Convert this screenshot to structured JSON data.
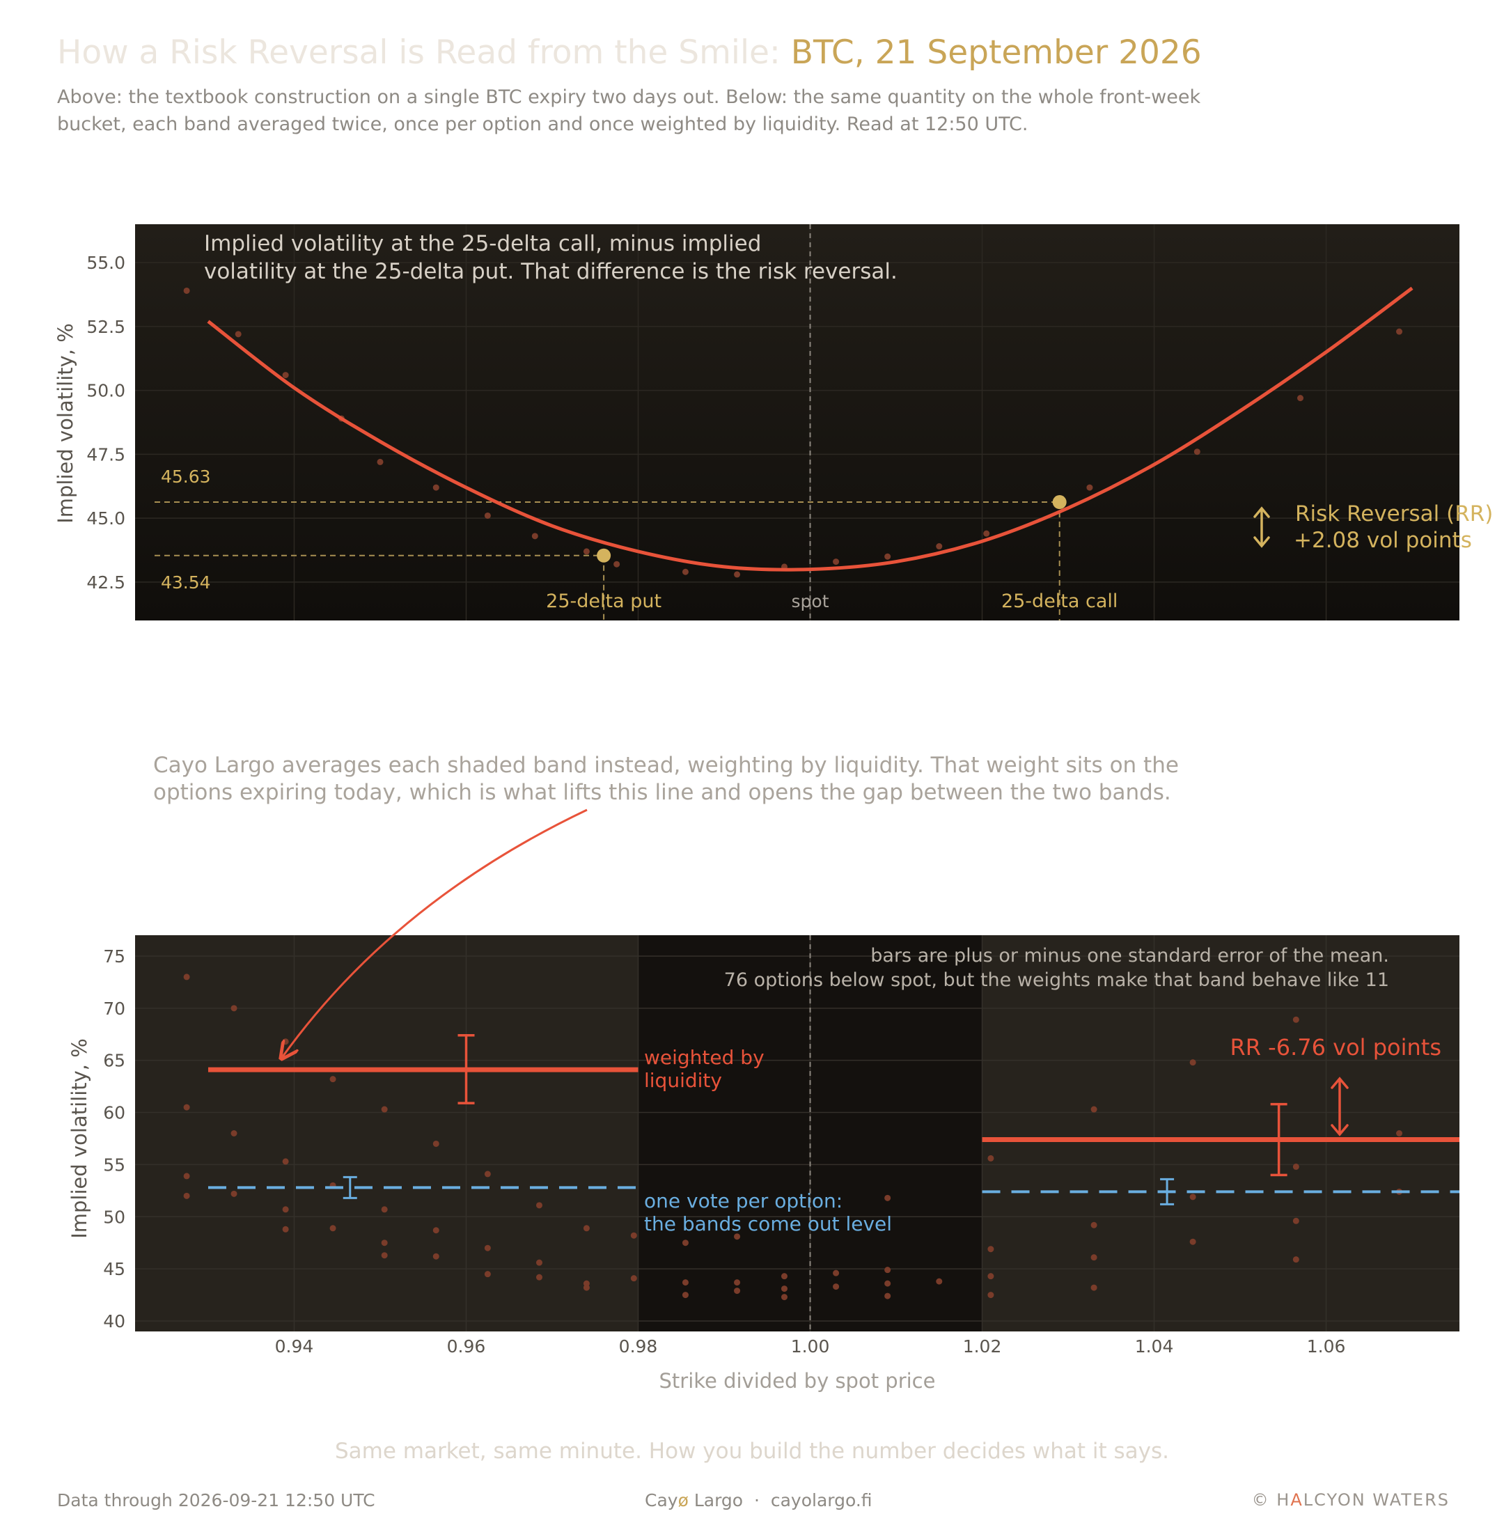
{
  "header": {
    "title_main": "How a Risk Reversal is Read from the Smile: ",
    "title_accent": "BTC, 21 September 2026",
    "subtitle": "Above: the textbook construction on a single BTC expiry two days out. Below: the same quantity on the whole front-week bucket, each band averaged twice, once per option and once weighted by liquidity. Read at 12:50 UTC."
  },
  "colors": {
    "background": "#ffffff",
    "panel_dark": "#1c1914",
    "smile_red": "#e8533a",
    "gold": "#d4b35e",
    "blue": "#6aaee0",
    "dot": "#7a3c2a"
  },
  "chart_data": [
    {
      "type": "line",
      "ylabel": "Implied volatility, %",
      "ylim": [
        41.0,
        56.5
      ],
      "xlim": [
        0.9215,
        1.0755
      ],
      "yticks": [
        42.5,
        45.0,
        47.5,
        50.0,
        52.5,
        55.0
      ],
      "grid": true,
      "annotation_top": "Implied volatility at the 25-delta call, minus implied volatility at the 25-delta put. That difference is the risk reversal.",
      "smile_curve": {
        "x": [
          0.93,
          0.94,
          0.95,
          0.96,
          0.97,
          0.98,
          0.99,
          1.0,
          1.01,
          1.02,
          1.03,
          1.04,
          1.05,
          1.06,
          1.07
        ],
        "y": [
          52.7,
          50.1,
          48.0,
          46.2,
          44.7,
          43.7,
          43.1,
          43.0,
          43.3,
          44.1,
          45.4,
          47.1,
          49.2,
          51.5,
          54.0
        ]
      },
      "market_points": {
        "x": [
          0.9275,
          0.9335,
          0.939,
          0.9455,
          0.95,
          0.9565,
          0.9625,
          0.968,
          0.974,
          0.9775,
          0.9855,
          0.9915,
          0.997,
          1.003,
          1.009,
          1.015,
          1.0205,
          1.0325,
          1.045,
          1.057,
          1.0685
        ],
        "y": [
          53.9,
          52.2,
          50.6,
          48.9,
          47.2,
          46.2,
          45.1,
          44.3,
          43.7,
          43.2,
          42.9,
          42.8,
          43.1,
          43.3,
          43.5,
          43.9,
          44.4,
          46.2,
          47.6,
          49.7,
          52.3
        ]
      },
      "put_25d": {
        "x": 0.976,
        "iv": 43.54,
        "label": "25-delta put",
        "value_label": "43.54"
      },
      "call_25d": {
        "x": 1.029,
        "iv": 45.63,
        "label": "25-delta call",
        "value_label": "45.63"
      },
      "spot": {
        "x": 1.0,
        "label": "spot"
      },
      "rr": {
        "label": "Risk Reversal (RR)",
        "value_label": "+2.08 vol points"
      }
    },
    {
      "type": "scatter",
      "ylabel": "Implied volatility, %",
      "xlabel": "Strike divided by spot price",
      "ylim": [
        39.0,
        77.0
      ],
      "xlim": [
        0.9215,
        1.0755
      ],
      "xticks": [
        0.94,
        0.96,
        0.98,
        1.0,
        1.02,
        1.04,
        1.06
      ],
      "xtick_labels": [
        "0.94",
        "0.96",
        "0.98",
        "1.00",
        "1.02",
        "1.04",
        "1.06"
      ],
      "yticks": [
        40,
        45,
        50,
        55,
        60,
        65,
        70,
        75
      ],
      "grid": true,
      "bands": [
        {
          "name": "below spot",
          "x0": 0.9215,
          "x1": 0.98
        },
        {
          "name": "above spot",
          "x0": 1.02,
          "x1": 1.0755
        }
      ],
      "series": [
        {
          "name": "weighted by liquidity",
          "segments": [
            {
              "x0": 0.93,
              "x1": 0.98,
              "y": 64.1,
              "err_x": 0.96,
              "err_lo": 60.9,
              "err_hi": 67.4
            },
            {
              "x0": 1.02,
              "x1": 1.0755,
              "y": 57.4,
              "err_x": 1.0545,
              "err_lo": 54.0,
              "err_hi": 60.8
            }
          ]
        },
        {
          "name": "one vote per option",
          "segments": [
            {
              "x0": 0.93,
              "x1": 0.98,
              "y": 52.8,
              "err_x": 0.9465,
              "err_lo": 51.8,
              "err_hi": 53.8
            },
            {
              "x0": 1.02,
              "x1": 1.0755,
              "y": 52.4,
              "err_x": 1.0415,
              "err_lo": 51.2,
              "err_hi": 53.6
            }
          ]
        }
      ],
      "points": {
        "x": [
          0.9275,
          0.9275,
          0.9275,
          0.9275,
          0.933,
          0.933,
          0.933,
          0.939,
          0.939,
          0.939,
          0.939,
          0.9445,
          0.9445,
          0.9445,
          0.9505,
          0.9505,
          0.9505,
          0.9505,
          0.9565,
          0.9565,
          0.9565,
          0.9625,
          0.9625,
          0.9625,
          0.9685,
          0.9685,
          0.9685,
          0.974,
          0.974,
          0.974,
          0.9795,
          0.9795,
          0.9855,
          0.9855,
          0.9855,
          0.9915,
          0.9915,
          0.9915,
          0.997,
          0.997,
          0.997,
          1.003,
          1.003,
          1.009,
          1.009,
          1.009,
          1.009,
          1.015,
          1.021,
          1.021,
          1.021,
          1.021,
          1.033,
          1.033,
          1.033,
          1.033,
          1.0445,
          1.0445,
          1.0445,
          1.0565,
          1.0565,
          1.0565,
          1.0565,
          1.0685,
          1.0685
        ],
        "y": [
          73.0,
          60.5,
          53.9,
          52.0,
          70.0,
          58.0,
          52.2,
          66.8,
          55.3,
          50.7,
          48.8,
          63.2,
          53.0,
          48.9,
          60.3,
          50.7,
          47.5,
          46.3,
          57.0,
          48.7,
          46.2,
          54.1,
          47.0,
          44.5,
          51.1,
          45.6,
          44.2,
          48.9,
          43.6,
          43.2,
          48.2,
          44.1,
          47.5,
          43.7,
          42.5,
          48.1,
          43.7,
          42.9,
          44.3,
          43.1,
          42.3,
          44.6,
          43.3,
          51.8,
          44.9,
          43.6,
          42.4,
          43.8,
          55.6,
          46.9,
          44.3,
          42.5,
          60.3,
          49.2,
          46.1,
          43.2,
          64.8,
          51.9,
          47.6,
          68.9,
          54.8,
          49.6,
          45.9,
          58.0,
          52.4
        ]
      },
      "annotation_top": "Cayo Largo averages each shaded band instead, weighting by liquidity. That weight sits on the options expiring today, which is what lifts this line and opens the gap between the two bands.",
      "note_errbars": "bars are plus or minus one standard error of the mean.",
      "note_counts": "76 options below spot, but the weights make that band behave like 11",
      "label_weighted": [
        "weighted by",
        "liquidity"
      ],
      "label_vote": [
        "one vote per option:",
        "the bands come out level"
      ],
      "rr_label": "RR -6.76 vol points"
    }
  ],
  "footer": {
    "tagline": "Same market, same minute. How you build the number decides what it says.",
    "data_through": "Data through 2026-09-21 12:50 UTC",
    "brand_part1": "Cay",
    "brand_o": "ø",
    "brand_part2": " Largo",
    "separator": "·",
    "url": "cayolargo.fi",
    "copyright_symbol": "©",
    "company_pre": "H",
    "company_accent": "A",
    "company_post": "LCYON WATERS"
  }
}
